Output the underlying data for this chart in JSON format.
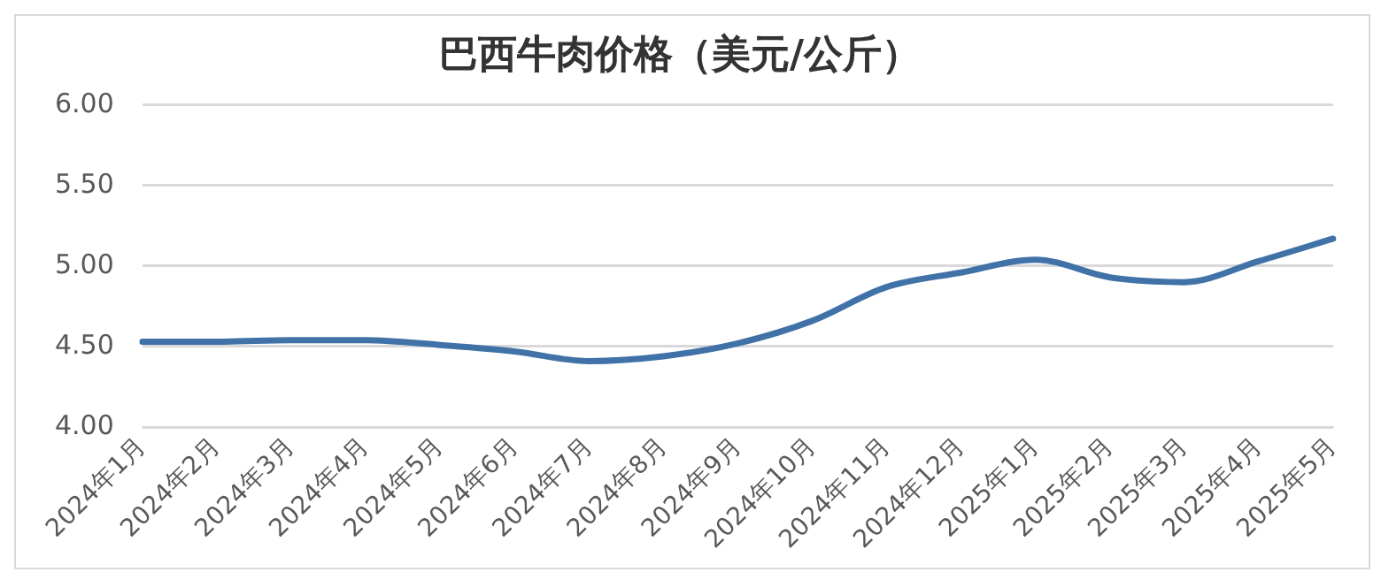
{
  "chart_data": {
    "type": "line",
    "title": "巴西牛肉价格（美元/公斤）",
    "categories": [
      "2024年1月",
      "2024年2月",
      "2024年3月",
      "2024年4月",
      "2024年5月",
      "2024年6月",
      "2024年7月",
      "2024年8月",
      "2024年9月",
      "2024年10月",
      "2024年11月",
      "2024年12月",
      "2025年1月",
      "2025年2月",
      "2025年3月",
      "2025年4月",
      "2025年5月"
    ],
    "series": [
      {
        "color": "#4072a8",
        "values": [
          4.53,
          4.53,
          4.54,
          4.54,
          4.51,
          4.47,
          4.41,
          4.44,
          4.52,
          4.66,
          4.87,
          4.96,
          5.04,
          4.93,
          4.9,
          5.03,
          5.17
        ]
      }
    ],
    "ylim": [
      4.0,
      6.0
    ],
    "yticks": [
      {
        "value": 4,
        "label": "4.00"
      },
      {
        "value": 4.5,
        "label": "4.50"
      },
      {
        "value": 5,
        "label": "5.00"
      },
      {
        "value": 5.5,
        "label": "5.50"
      },
      {
        "value": 6,
        "label": "6.00"
      }
    ],
    "grid": "y",
    "legend": false,
    "marker": "none",
    "line_style": "solid"
  }
}
